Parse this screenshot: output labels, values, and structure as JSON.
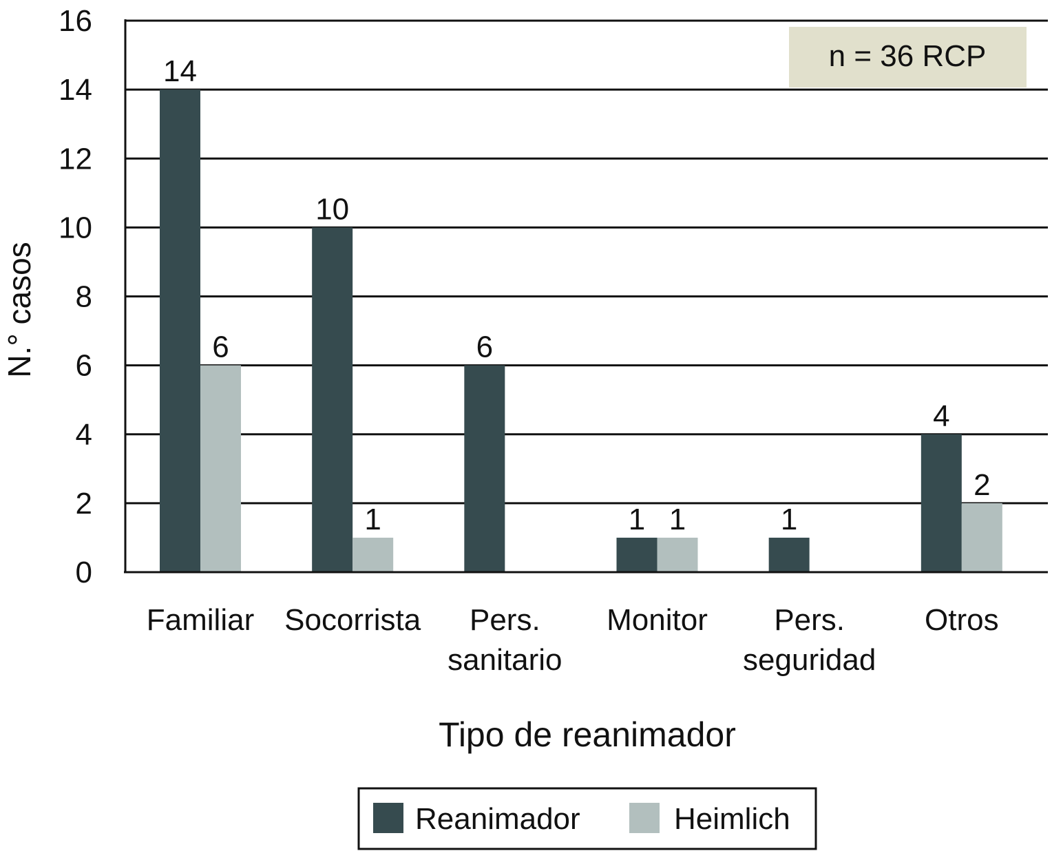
{
  "chart_data": {
    "type": "bar",
    "categories": [
      [
        "Familiar"
      ],
      [
        "Socorrista"
      ],
      [
        "Pers.",
        "sanitario"
      ],
      [
        "Monitor"
      ],
      [
        "Pers.",
        "seguridad"
      ],
      [
        "Otros"
      ]
    ],
    "series": [
      {
        "name": "Reanimador",
        "color": "#364b4f",
        "values": [
          14,
          10,
          6,
          1,
          1,
          4
        ]
      },
      {
        "name": "Heimlich",
        "color": "#b2bfbe",
        "values": [
          6,
          1,
          null,
          1,
          null,
          2
        ]
      }
    ],
    "ylabel": "N.° casos",
    "xlabel": "Tipo de reanimador",
    "ylim": [
      0,
      16
    ],
    "yticks": [
      0,
      2,
      4,
      6,
      8,
      10,
      12,
      14,
      16
    ],
    "grid": true,
    "annotation": {
      "text": "n = 36 RCP",
      "background": "#e1e0cc"
    },
    "legend": {
      "position": "bottom"
    }
  }
}
